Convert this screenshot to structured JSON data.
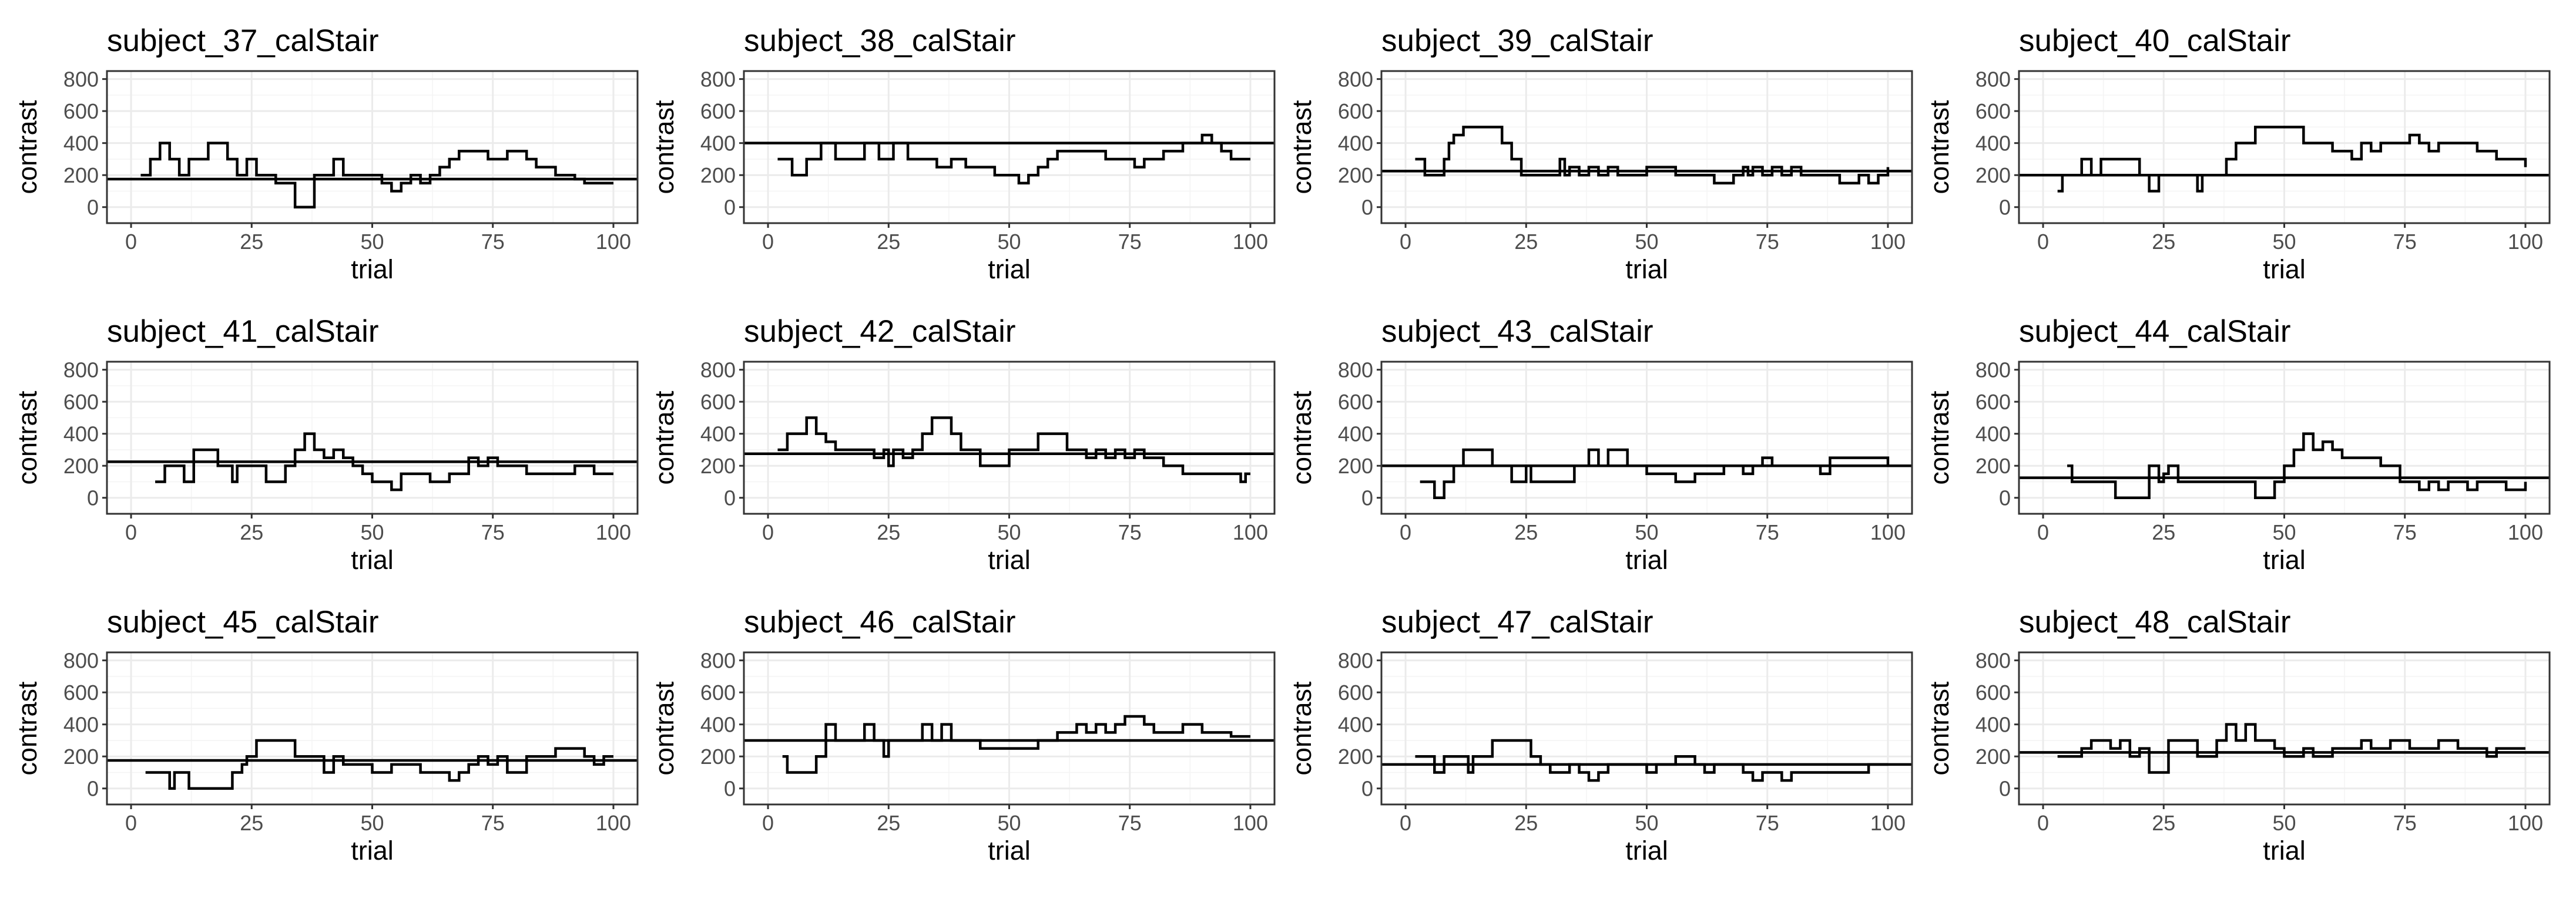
{
  "chart_data": [
    {
      "type": "line",
      "title": "subject_37_calStair",
      "xlabel": "trial",
      "ylabel": "contrast",
      "xlim": [
        -5,
        105
      ],
      "ylim": [
        -100,
        850
      ],
      "xticks": [
        0,
        25,
        50,
        75,
        100
      ],
      "yticks": [
        0,
        200,
        400,
        600,
        800
      ],
      "hline": 175,
      "x": [
        2,
        4,
        6,
        8,
        10,
        12,
        14,
        16,
        20,
        22,
        24,
        26,
        28,
        30,
        34,
        38,
        40,
        42,
        44,
        46,
        52,
        54,
        56,
        58,
        60,
        62,
        64,
        66,
        68,
        70,
        72,
        74,
        78,
        80,
        82,
        84,
        86,
        88,
        90,
        92,
        94,
        96,
        100
      ],
      "y": [
        200,
        300,
        400,
        300,
        200,
        300,
        300,
        400,
        300,
        200,
        300,
        200,
        200,
        150,
        0,
        200,
        200,
        300,
        200,
        200,
        150,
        100,
        150,
        200,
        150,
        200,
        250,
        300,
        350,
        350,
        350,
        300,
        350,
        350,
        300,
        250,
        250,
        200,
        200,
        175,
        150,
        150,
        150
      ]
    },
    {
      "type": "line",
      "title": "subject_38_calStair",
      "xlabel": "trial",
      "ylabel": "contrast",
      "xlim": [
        -5,
        105
      ],
      "ylim": [
        -100,
        850
      ],
      "xticks": [
        0,
        25,
        50,
        75,
        100
      ],
      "yticks": [
        0,
        200,
        400,
        600,
        800
      ],
      "hline": 400,
      "x": [
        2,
        5,
        8,
        11,
        14,
        17,
        20,
        23,
        26,
        29,
        32,
        35,
        38,
        41,
        44,
        47,
        50,
        52,
        54,
        56,
        58,
        60,
        62,
        65,
        68,
        70,
        73,
        76,
        78,
        80,
        82,
        84,
        86,
        88,
        90,
        92,
        94,
        96,
        98,
        100
      ],
      "y": [
        300,
        200,
        300,
        400,
        300,
        300,
        400,
        300,
        400,
        300,
        300,
        250,
        300,
        250,
        250,
        200,
        200,
        150,
        200,
        250,
        300,
        350,
        350,
        350,
        350,
        300,
        300,
        250,
        300,
        300,
        350,
        350,
        400,
        400,
        450,
        400,
        350,
        300,
        300,
        300
      ]
    },
    {
      "type": "line",
      "title": "subject_39_calStair",
      "xlabel": "trial",
      "ylabel": "contrast",
      "xlim": [
        -5,
        105
      ],
      "ylim": [
        -100,
        850
      ],
      "xticks": [
        0,
        25,
        50,
        75,
        100
      ],
      "yticks": [
        0,
        200,
        400,
        600,
        800
      ],
      "hline": 225,
      "x": [
        2,
        4,
        8,
        9,
        10,
        12,
        20,
        22,
        24,
        32,
        33,
        34,
        36,
        38,
        40,
        42,
        44,
        50,
        56,
        58,
        64,
        68,
        70,
        71,
        72,
        74,
        76,
        78,
        80,
        82,
        90,
        94,
        96,
        98,
        100
      ],
      "y": [
        300,
        200,
        300,
        400,
        450,
        500,
        400,
        300,
        200,
        300,
        200,
        250,
        200,
        250,
        200,
        250,
        200,
        250,
        200,
        200,
        150,
        200,
        250,
        200,
        250,
        200,
        250,
        200,
        250,
        200,
        150,
        200,
        150,
        200,
        250
      ]
    },
    {
      "type": "line",
      "title": "subject_40_calStair",
      "xlabel": "trial",
      "ylabel": "contrast",
      "xlim": [
        -5,
        105
      ],
      "ylim": [
        -100,
        850
      ],
      "xticks": [
        0,
        25,
        50,
        75,
        100
      ],
      "yticks": [
        0,
        200,
        400,
        600,
        800
      ],
      "hline": 200,
      "x": [
        3,
        4,
        6,
        8,
        10,
        12,
        20,
        22,
        24,
        32,
        33,
        34,
        36,
        38,
        40,
        44,
        54,
        60,
        64,
        66,
        68,
        70,
        72,
        74,
        76,
        78,
        80,
        82,
        86,
        90,
        94,
        96,
        100
      ],
      "y": [
        100,
        200,
        200,
        300,
        200,
        300,
        200,
        100,
        200,
        100,
        200,
        200,
        200,
        300,
        400,
        500,
        400,
        350,
        300,
        400,
        350,
        400,
        400,
        400,
        450,
        400,
        350,
        400,
        400,
        350,
        300,
        300,
        250
      ]
    },
    {
      "type": "line",
      "title": "subject_41_calStair",
      "xlabel": "trial",
      "ylabel": "contrast",
      "xlim": [
        -5,
        105
      ],
      "ylim": [
        -100,
        850
      ],
      "xticks": [
        0,
        25,
        50,
        75,
        100
      ],
      "yticks": [
        0,
        200,
        400,
        600,
        800
      ],
      "hline": 225,
      "x": [
        5,
        7,
        10,
        11,
        13,
        18,
        20,
        21,
        22,
        26,
        28,
        32,
        34,
        36,
        38,
        40,
        42,
        44,
        46,
        48,
        50,
        54,
        56,
        60,
        62,
        66,
        70,
        72,
        74,
        76,
        78,
        82,
        88,
        92,
        96,
        98,
        100
      ],
      "y": [
        100,
        200,
        200,
        100,
        300,
        200,
        200,
        100,
        200,
        200,
        100,
        200,
        300,
        400,
        300,
        250,
        300,
        250,
        200,
        150,
        100,
        50,
        150,
        150,
        100,
        150,
        250,
        200,
        250,
        200,
        200,
        150,
        150,
        200,
        150,
        150,
        150
      ]
    },
    {
      "type": "line",
      "title": "subject_42_calStair",
      "xlabel": "trial",
      "ylabel": "contrast",
      "xlim": [
        -5,
        105
      ],
      "ylim": [
        -100,
        850
      ],
      "xticks": [
        0,
        25,
        50,
        75,
        100
      ],
      "yticks": [
        0,
        200,
        400,
        600,
        800
      ],
      "hline": 275,
      "x": [
        2,
        4,
        8,
        10,
        12,
        14,
        22,
        24,
        25,
        26,
        28,
        30,
        32,
        34,
        38,
        40,
        44,
        50,
        56,
        62,
        66,
        68,
        70,
        72,
        74,
        76,
        78,
        82,
        86,
        92,
        98,
        99,
        100
      ],
      "y": [
        300,
        400,
        500,
        400,
        350,
        300,
        250,
        300,
        200,
        300,
        250,
        300,
        400,
        500,
        400,
        300,
        200,
        300,
        400,
        300,
        250,
        300,
        250,
        300,
        250,
        300,
        250,
        200,
        150,
        150,
        100,
        150,
        150
      ]
    },
    {
      "type": "line",
      "title": "subject_43_calStair",
      "xlabel": "trial",
      "ylabel": "contrast",
      "xlim": [
        -5,
        105
      ],
      "ylim": [
        -100,
        850
      ],
      "xticks": [
        0,
        25,
        50,
        75,
        100
      ],
      "yticks": [
        0,
        200,
        400,
        600,
        800
      ],
      "hline": 200,
      "x": [
        3,
        6,
        8,
        10,
        12,
        14,
        18,
        22,
        25,
        26,
        28,
        35,
        38,
        40,
        42,
        46,
        50,
        52,
        56,
        60,
        62,
        66,
        70,
        72,
        74,
        76,
        78,
        86,
        88,
        96,
        100
      ],
      "y": [
        100,
        0,
        100,
        200,
        300,
        300,
        200,
        100,
        200,
        100,
        100,
        200,
        300,
        200,
        300,
        200,
        150,
        150,
        100,
        150,
        150,
        200,
        150,
        200,
        250,
        200,
        200,
        150,
        250,
        250,
        200
      ]
    },
    {
      "type": "line",
      "title": "subject_44_calStair",
      "xlabel": "trial",
      "ylabel": "contrast",
      "xlim": [
        -5,
        105
      ],
      "ylim": [
        -100,
        850
      ],
      "xticks": [
        0,
        25,
        50,
        75,
        100
      ],
      "yticks": [
        0,
        200,
        400,
        600,
        800
      ],
      "hline": 125,
      "x": [
        5,
        6,
        8,
        12,
        15,
        18,
        22,
        24,
        25,
        26,
        28,
        34,
        36,
        40,
        44,
        48,
        50,
        52,
        54,
        56,
        58,
        60,
        62,
        66,
        70,
        74,
        76,
        78,
        80,
        82,
        84,
        86,
        88,
        90,
        92,
        96,
        100
      ],
      "y": [
        200,
        100,
        100,
        100,
        0,
        0,
        200,
        100,
        150,
        200,
        100,
        100,
        100,
        100,
        0,
        100,
        200,
        300,
        400,
        300,
        350,
        300,
        250,
        250,
        200,
        100,
        100,
        50,
        100,
        50,
        100,
        100,
        50,
        100,
        100,
        50,
        100
      ]
    },
    {
      "type": "line",
      "title": "subject_45_calStair",
      "xlabel": "trial",
      "ylabel": "contrast",
      "xlim": [
        -5,
        105
      ],
      "ylim": [
        -100,
        850
      ],
      "xticks": [
        0,
        25,
        50,
        75,
        100
      ],
      "yticks": [
        0,
        200,
        400,
        600,
        800
      ],
      "hline": 175,
      "x": [
        3,
        8,
        9,
        10,
        12,
        21,
        23,
        24,
        26,
        32,
        34,
        40,
        42,
        44,
        48,
        50,
        54,
        60,
        62,
        66,
        68,
        70,
        72,
        74,
        76,
        78,
        82,
        86,
        88,
        94,
        96,
        98,
        100
      ],
      "y": [
        100,
        0,
        100,
        100,
        0,
        100,
        150,
        200,
        300,
        300,
        200,
        100,
        200,
        150,
        150,
        100,
        150,
        100,
        100,
        50,
        100,
        150,
        200,
        150,
        200,
        100,
        200,
        200,
        250,
        200,
        150,
        200,
        200
      ]
    },
    {
      "type": "line",
      "title": "subject_46_calStair",
      "xlabel": "trial",
      "ylabel": "contrast",
      "xlim": [
        -5,
        105
      ],
      "ylim": [
        -100,
        850
      ],
      "xticks": [
        0,
        25,
        50,
        75,
        100
      ],
      "yticks": [
        0,
        200,
        400,
        600,
        800
      ],
      "hline": 300,
      "x": [
        3,
        4,
        8,
        10,
        12,
        14,
        20,
        22,
        24,
        25,
        26,
        32,
        34,
        36,
        38,
        40,
        44,
        50,
        56,
        60,
        62,
        64,
        66,
        68,
        70,
        72,
        74,
        78,
        80,
        82,
        86,
        90,
        92,
        96,
        100
      ],
      "y": [
        200,
        100,
        100,
        200,
        400,
        300,
        400,
        300,
        200,
        300,
        300,
        400,
        300,
        400,
        300,
        300,
        250,
        250,
        300,
        350,
        350,
        400,
        350,
        400,
        350,
        400,
        450,
        400,
        350,
        350,
        400,
        350,
        350,
        325,
        325
      ]
    },
    {
      "type": "line",
      "title": "subject_47_calStair",
      "xlabel": "trial",
      "ylabel": "contrast",
      "xlim": [
        -5,
        105
      ],
      "ylim": [
        -100,
        850
      ],
      "xticks": [
        0,
        25,
        50,
        75,
        100
      ],
      "yticks": [
        0,
        200,
        400,
        600,
        800
      ],
      "hline": 150,
      "x": [
        2,
        4,
        6,
        8,
        12,
        13,
        14,
        16,
        18,
        20,
        26,
        28,
        30,
        34,
        36,
        38,
        40,
        42,
        46,
        50,
        52,
        54,
        56,
        60,
        62,
        64,
        70,
        72,
        74,
        78,
        80,
        84,
        92,
        96,
        98,
        100
      ],
      "y": [
        200,
        200,
        100,
        200,
        200,
        100,
        200,
        200,
        300,
        300,
        200,
        150,
        100,
        150,
        100,
        50,
        100,
        150,
        150,
        100,
        150,
        150,
        200,
        150,
        100,
        150,
        100,
        50,
        100,
        50,
        100,
        100,
        100,
        150,
        150,
        150
      ]
    },
    {
      "type": "line",
      "title": "subject_48_calStair",
      "xlabel": "trial",
      "ylabel": "contrast",
      "xlim": [
        -5,
        105
      ],
      "ylim": [
        -100,
        850
      ],
      "xticks": [
        0,
        25,
        50,
        75,
        100
      ],
      "yticks": [
        0,
        200,
        400,
        600,
        800
      ],
      "hline": 225,
      "x": [
        3,
        8,
        10,
        14,
        16,
        18,
        20,
        22,
        26,
        28,
        32,
        36,
        38,
        40,
        42,
        44,
        48,
        50,
        54,
        56,
        60,
        66,
        68,
        72,
        76,
        80,
        82,
        86,
        92,
        94,
        96,
        98,
        100
      ],
      "y": [
        200,
        250,
        300,
        250,
        300,
        200,
        250,
        100,
        300,
        300,
        200,
        300,
        400,
        300,
        400,
        300,
        250,
        200,
        250,
        200,
        250,
        300,
        250,
        300,
        250,
        250,
        300,
        250,
        200,
        250,
        250,
        250,
        250
      ]
    }
  ]
}
